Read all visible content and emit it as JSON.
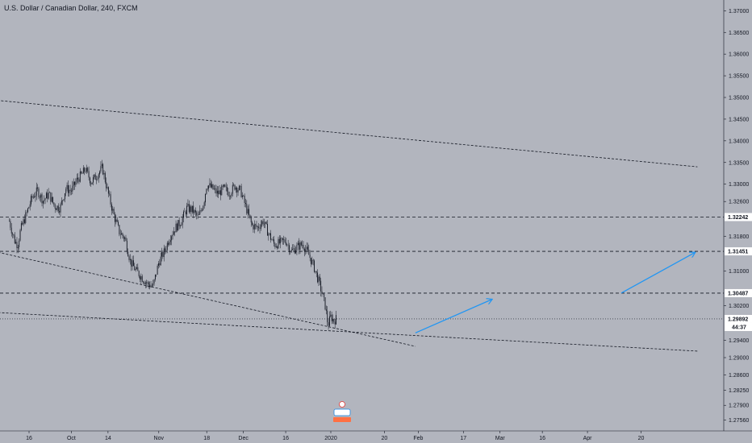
{
  "header": {
    "title": "U.S. Dollar / Canadian Dollar, 240, FXCM"
  },
  "colors": {
    "background": "#b2b5be",
    "candle": "#131722",
    "dashed_line": "#131722",
    "arrow": "#2196f3",
    "badge_bg": "#ffffff"
  },
  "chart_data": {
    "type": "candlestick",
    "title": "U.S. Dollar / Canadian Dollar, 240, FXCM",
    "xlabel": "",
    "ylabel": "",
    "ylim": [
      1.2735,
      1.3722
    ],
    "x_ticks": [
      {
        "label": "16",
        "date": "2019-09-16"
      },
      {
        "label": "Oct",
        "date": "2019-10-01"
      },
      {
        "label": "14",
        "date": "2019-10-14"
      },
      {
        "label": "Nov",
        "date": "2019-11-01"
      },
      {
        "label": "18",
        "date": "2019-11-18"
      },
      {
        "label": "Dec",
        "date": "2019-12-01"
      },
      {
        "label": "16",
        "date": "2019-12-16"
      },
      {
        "label": "2020",
        "date": "2020-01-01"
      },
      {
        "label": "20",
        "date": "2020-01-20"
      },
      {
        "label": "Feb",
        "date": "2020-02-01"
      },
      {
        "label": "17",
        "date": "2020-02-17"
      },
      {
        "label": "Mar",
        "date": "2020-03-01"
      },
      {
        "label": "16",
        "date": "2020-03-16"
      },
      {
        "label": "Apr",
        "date": "2020-04-01"
      },
      {
        "label": "20",
        "date": "2020-04-20"
      }
    ],
    "y_ticks": [
      "1.37000",
      "1.36500",
      "1.36000",
      "1.35500",
      "1.35000",
      "1.34500",
      "1.34000",
      "1.33500",
      "1.33000",
      "1.32600",
      "1.31800",
      "1.31000",
      "1.30200",
      "1.29400",
      "1.29000",
      "1.28600",
      "1.28250",
      "1.27900",
      "1.27560"
    ],
    "price_path": [
      [
        "2019-09-09",
        1.3215
      ],
      [
        "2019-09-10",
        1.319
      ],
      [
        "2019-09-11",
        1.3168
      ],
      [
        "2019-09-12",
        1.316
      ],
      [
        "2019-09-13",
        1.3195
      ],
      [
        "2019-09-15",
        1.323
      ],
      [
        "2019-09-17",
        1.3268
      ],
      [
        "2019-09-19",
        1.3285
      ],
      [
        "2019-09-21",
        1.3262
      ],
      [
        "2019-09-23",
        1.3278
      ],
      [
        "2019-09-25",
        1.325
      ],
      [
        "2019-09-27",
        1.3245
      ],
      [
        "2019-09-29",
        1.329
      ],
      [
        "2019-10-01",
        1.3285
      ],
      [
        "2019-10-03",
        1.331
      ],
      [
        "2019-10-05",
        1.3325
      ],
      [
        "2019-10-06",
        1.3335
      ],
      [
        "2019-10-08",
        1.3305
      ],
      [
        "2019-10-10",
        1.332
      ],
      [
        "2019-10-12",
        1.3338
      ],
      [
        "2019-10-14",
        1.328
      ],
      [
        "2019-10-16",
        1.323
      ],
      [
        "2019-10-18",
        1.319
      ],
      [
        "2019-10-20",
        1.3175
      ],
      [
        "2019-10-22",
        1.312
      ],
      [
        "2019-10-24",
        1.31
      ],
      [
        "2019-10-26",
        1.3085
      ],
      [
        "2019-10-28",
        1.307
      ],
      [
        "2019-10-30",
        1.3065
      ],
      [
        "2019-11-01",
        1.312
      ],
      [
        "2019-11-03",
        1.3145
      ],
      [
        "2019-11-05",
        1.318
      ],
      [
        "2019-11-07",
        1.32
      ],
      [
        "2019-11-09",
        1.3215
      ],
      [
        "2019-11-11",
        1.3245
      ],
      [
        "2019-11-13",
        1.324
      ],
      [
        "2019-11-15",
        1.3222
      ],
      [
        "2019-11-17",
        1.326
      ],
      [
        "2019-11-18",
        1.33
      ],
      [
        "2019-11-20",
        1.329
      ],
      [
        "2019-11-22",
        1.3278
      ],
      [
        "2019-11-24",
        1.329
      ],
      [
        "2019-11-26",
        1.328
      ],
      [
        "2019-11-28",
        1.3296
      ],
      [
        "2019-11-30",
        1.3285
      ],
      [
        "2019-12-02",
        1.3245
      ],
      [
        "2019-12-04",
        1.3205
      ],
      [
        "2019-12-06",
        1.32
      ],
      [
        "2019-12-08",
        1.3215
      ],
      [
        "2019-12-10",
        1.3185
      ],
      [
        "2019-12-12",
        1.316
      ],
      [
        "2019-12-14",
        1.3165
      ],
      [
        "2019-12-16",
        1.317
      ],
      [
        "2019-12-18",
        1.3145
      ],
      [
        "2019-12-20",
        1.3155
      ],
      [
        "2019-12-22",
        1.3162
      ],
      [
        "2019-12-24",
        1.314
      ],
      [
        "2019-12-26",
        1.311
      ],
      [
        "2019-12-28",
        1.307
      ],
      [
        "2019-12-30",
        1.302
      ],
      [
        "2019-12-31",
        1.2975
      ],
      [
        "2020-01-01",
        1.2995
      ],
      [
        "2020-01-02",
        1.2985
      ],
      [
        "2020-01-03",
        1.299
      ]
    ],
    "horizontal_levels": [
      {
        "value": 1.32242,
        "label": "1.32242"
      },
      {
        "value": 1.31451,
        "label": "1.31451"
      },
      {
        "value": 1.30487,
        "label": "1.30487"
      }
    ],
    "current_price": {
      "value": 1.29892,
      "label": "1.29892",
      "countdown": "44:37"
    },
    "trendlines": [
      {
        "from": [
          "2019-08-20",
          1.3503
        ],
        "to": [
          "2020-05-10",
          1.334
        ]
      },
      {
        "from": [
          "2019-09-05",
          1.3143
        ],
        "to": [
          "2020-01-31",
          1.2926
        ]
      },
      {
        "from": [
          "2019-09-05",
          1.3004
        ],
        "to": [
          "2020-05-10",
          1.2915
        ]
      }
    ],
    "arrows": [
      {
        "from": [
          "2020-01-31",
          1.2957
        ],
        "to": [
          "2020-02-27",
          1.3034
        ]
      },
      {
        "from": [
          "2020-04-13",
          1.3049
        ],
        "to": [
          "2020-05-09",
          1.3142
        ]
      }
    ]
  }
}
